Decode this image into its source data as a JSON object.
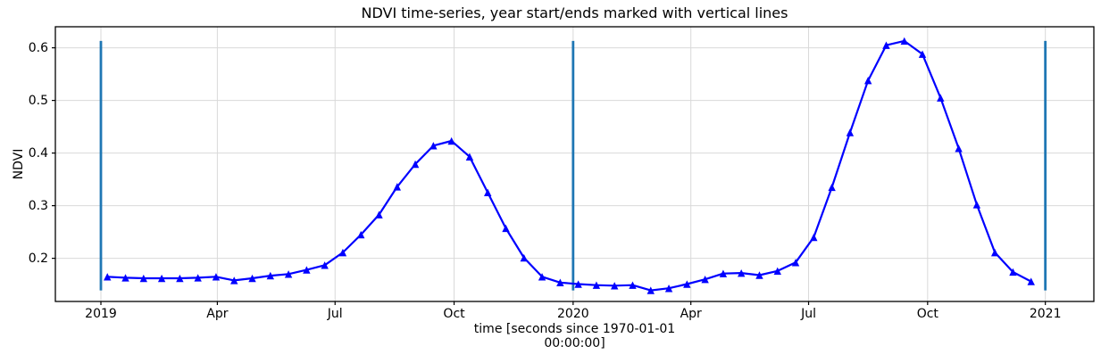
{
  "figure": {
    "title": "NDVI time-series, year start/ends marked with vertical lines",
    "ylabel": "NDVI",
    "xlabel_line1": "time [seconds since 1970-01-01",
    "xlabel_line2": "00:00:00]"
  },
  "chart_data": {
    "type": "line",
    "title": "NDVI time-series, year start/ends marked with vertical lines",
    "xlabel": "time [seconds since 1970-01-01 00:00:00]",
    "ylabel": "NDVI",
    "grid": true,
    "legend": "none",
    "x_axis": {
      "unit": "days since 2019-01-01",
      "lim": [
        -35.2,
        767.5
      ],
      "ticks": [
        {
          "label": "2019",
          "day": 0
        },
        {
          "label": "Apr",
          "day": 90
        },
        {
          "label": "Jul",
          "day": 181
        },
        {
          "label": "Oct",
          "day": 273
        },
        {
          "label": "2020",
          "day": 365
        },
        {
          "label": "Apr",
          "day": 456
        },
        {
          "label": "Jul",
          "day": 547
        },
        {
          "label": "Oct",
          "day": 639
        },
        {
          "label": "2021",
          "day": 730
        }
      ]
    },
    "y_axis": {
      "lim": [
        0.118,
        0.64
      ],
      "ticks": [
        0.2,
        0.3,
        0.4,
        0.5,
        0.6
      ]
    },
    "series": [
      {
        "name": "NDVI",
        "color": "#0000ff",
        "marker": "triangle-up",
        "x_days": [
          5,
          19,
          33,
          47,
          61,
          75,
          89,
          103,
          117,
          131,
          145,
          159,
          173,
          187,
          201,
          215,
          229,
          243,
          257,
          271,
          285,
          299,
          313,
          327,
          341,
          355,
          369,
          383,
          397,
          411,
          425,
          439,
          453,
          467,
          481,
          495,
          509,
          523,
          537,
          551,
          565,
          579,
          593,
          607,
          621,
          635,
          649,
          663,
          677,
          691,
          705,
          719
        ],
        "values": [
          0.165,
          0.163,
          0.162,
          0.162,
          0.162,
          0.163,
          0.165,
          0.158,
          0.162,
          0.167,
          0.17,
          0.178,
          0.187,
          0.211,
          0.245,
          0.283,
          0.336,
          0.379,
          0.414,
          0.423,
          0.393,
          0.325,
          0.257,
          0.201,
          0.165,
          0.154,
          0.151,
          0.149,
          0.148,
          0.149,
          0.139,
          0.143,
          0.151,
          0.16,
          0.171,
          0.172,
          0.168,
          0.176,
          0.192,
          0.24,
          0.335,
          0.439,
          0.538,
          0.605,
          0.613,
          0.588,
          0.505,
          0.409,
          0.302,
          0.211,
          0.174,
          0.156
        ]
      }
    ],
    "vlines": {
      "description": "year start/end markers",
      "x_days": [
        0,
        365,
        730
      ],
      "ymin": 0.139,
      "ymax": 0.613,
      "color": "#1f77b4"
    },
    "colors": {
      "background": "#ffffff",
      "grid": "#d9d9d9",
      "spine": "#000000",
      "text": "#000000"
    }
  }
}
